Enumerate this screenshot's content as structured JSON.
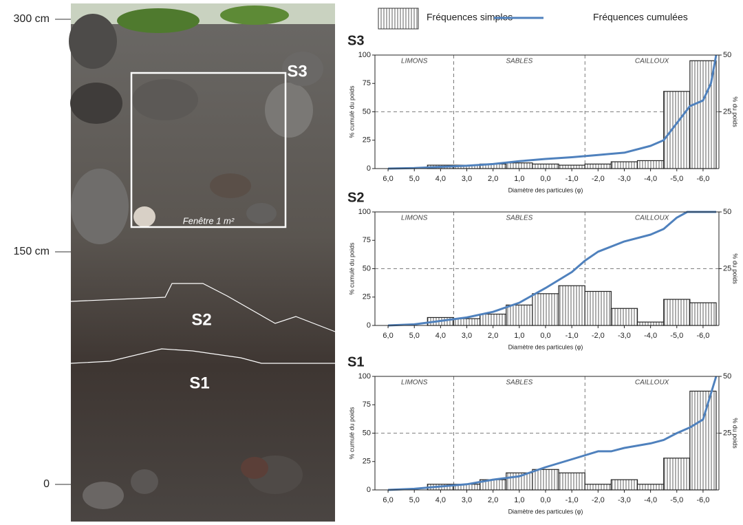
{
  "photo": {
    "depth_labels": [
      "300 cm",
      "150 cm",
      "0"
    ],
    "labels": [
      "S3",
      "S2",
      "S1"
    ],
    "window": "Fenêtre 1 m²"
  },
  "legend": [
    "Fréquences simples",
    "Fréquences cumulées"
  ],
  "chart_data": [
    {
      "type": "bar",
      "title": "S3",
      "y_label": "% cumulé du poids",
      "y2_label": "% du poids",
      "x_label": "Diamètre des particules (φ)",
      "xlim": [
        6.5,
        -6.5
      ],
      "xticks": [
        {
          "value": 6,
          "label": "6,0"
        },
        {
          "value": 5,
          "label": "5,0"
        },
        {
          "value": 4,
          "label": "4,0"
        },
        {
          "value": 3,
          "label": "3,0"
        },
        {
          "value": 2,
          "label": "2,0"
        },
        {
          "value": 1,
          "label": "1,0"
        },
        {
          "value": 0,
          "label": "0,0"
        },
        {
          "value": -1,
          "label": "-1,0"
        },
        {
          "value": -2,
          "label": "-2,0"
        },
        {
          "value": -3,
          "label": "-3,0"
        },
        {
          "value": -4,
          "label": "-4,0"
        },
        {
          "value": -5,
          "label": "-5,0"
        },
        {
          "value": -6,
          "label": "-6,0"
        }
      ],
      "ylim": [
        0,
        100
      ],
      "yticks": [
        0,
        25,
        50,
        75,
        100
      ],
      "y2lim": [
        0,
        50
      ],
      "y2ticks": [
        25,
        50
      ],
      "grid_y": [
        50
      ],
      "dividers": [
        3.5,
        -1.5
      ],
      "zones": [
        "LIMONS",
        "SABLES",
        "CAILLOUX"
      ],
      "series": [
        {
          "kind": "bar",
          "axis": "y2",
          "color": "#ffffff",
          "x": [
            4,
            3,
            2,
            1,
            0,
            -1,
            -2,
            -3,
            -4,
            -5,
            -6
          ],
          "values": [
            1.5,
            1.5,
            2,
            2.5,
            2,
            1.5,
            2,
            3,
            3.5,
            34,
            47.5
          ]
        },
        {
          "kind": "line",
          "color": "#4f81bd",
          "x": [
            6,
            5,
            4,
            3,
            2,
            1,
            0,
            -1,
            -2,
            -3,
            -4,
            -4.5,
            -5,
            -5.5,
            -6,
            -6.3,
            -6.5
          ],
          "values": [
            0,
            0.5,
            1.5,
            2.5,
            4,
            6.5,
            8.5,
            10,
            12,
            14,
            20,
            25,
            40,
            55,
            60,
            75,
            100
          ]
        }
      ]
    },
    {
      "type": "bar",
      "title": "S2",
      "y_label": "% cumulé du poids",
      "y2_label": "% du poids",
      "x_label": "Diamètre des particules (φ)",
      "xlim": [
        6.5,
        -6.5
      ],
      "xticks": [
        {
          "value": 6,
          "label": "6,0"
        },
        {
          "value": 5,
          "label": "5,0"
        },
        {
          "value": 4,
          "label": "4,0"
        },
        {
          "value": 3,
          "label": "3,0"
        },
        {
          "value": 2,
          "label": "2,0"
        },
        {
          "value": 1,
          "label": "1,0"
        },
        {
          "value": 0,
          "label": "0,0"
        },
        {
          "value": -1,
          "label": "-1,0"
        },
        {
          "value": -2,
          "label": "-2,0"
        },
        {
          "value": -3,
          "label": "-3,0"
        },
        {
          "value": -4,
          "label": "-4,0"
        },
        {
          "value": -5,
          "label": "-5,0"
        },
        {
          "value": -6,
          "label": "-6,0"
        }
      ],
      "ylim": [
        0,
        100
      ],
      "yticks": [
        0,
        25,
        50,
        75,
        100
      ],
      "y2lim": [
        0,
        50
      ],
      "y2ticks": [
        25,
        50
      ],
      "grid_y": [
        50
      ],
      "dividers": [
        3.5,
        -1.5
      ],
      "zones": [
        "LIMONS",
        "SABLES",
        "CAILLOUX"
      ],
      "series": [
        {
          "kind": "bar",
          "axis": "y2",
          "color": "#ffffff",
          "x": [
            4,
            3,
            2,
            1,
            0,
            -1,
            -2,
            -3,
            -4,
            -5,
            -6
          ],
          "values": [
            3.5,
            3,
            5,
            9,
            14,
            17.5,
            15,
            7.5,
            1.5,
            11.5,
            10
          ]
        },
        {
          "kind": "line",
          "color": "#4f81bd",
          "x": [
            6,
            5,
            4,
            3,
            2,
            1,
            0,
            -1,
            -1.5,
            -2,
            -3,
            -4,
            -4.5,
            -5,
            -5.4,
            -6.5
          ],
          "values": [
            0,
            1,
            4,
            7,
            12,
            20,
            33,
            47,
            57,
            65,
            74,
            80,
            85,
            95,
            100,
            100
          ]
        }
      ]
    },
    {
      "type": "bar",
      "title": "S1",
      "y_label": "% cumulé du poids",
      "y2_label": "% du poids",
      "x_label": "Diamètre des particules (φ)",
      "xlim": [
        6.5,
        -6.5
      ],
      "xticks": [
        {
          "value": 6,
          "label": "6,0"
        },
        {
          "value": 5,
          "label": "5,0"
        },
        {
          "value": 4,
          "label": "4,0"
        },
        {
          "value": 3,
          "label": "3,0"
        },
        {
          "value": 2,
          "label": "2,0"
        },
        {
          "value": 1,
          "label": "1,0"
        },
        {
          "value": 0,
          "label": "0,0"
        },
        {
          "value": -1,
          "label": "-1,0"
        },
        {
          "value": -2,
          "label": "-2,0"
        },
        {
          "value": -3,
          "label": "-3,0"
        },
        {
          "value": -4,
          "label": "-4,0"
        },
        {
          "value": -5,
          "label": "-5,0"
        },
        {
          "value": -6,
          "label": "-6,0"
        }
      ],
      "ylim": [
        0,
        100
      ],
      "yticks": [
        0,
        25,
        50,
        75,
        100
      ],
      "y2lim": [
        0,
        50
      ],
      "y2ticks": [
        25,
        50
      ],
      "grid_y": [
        50
      ],
      "dividers": [
        3.5,
        -1.5
      ],
      "zones": [
        "LIMONS",
        "SABLES",
        "CAILLOUX"
      ],
      "series": [
        {
          "kind": "bar",
          "axis": "y2",
          "color": "#ffffff",
          "x": [
            4,
            3,
            2,
            1,
            0,
            -1,
            -2,
            -3,
            -4,
            -5,
            -6
          ],
          "values": [
            2.5,
            2.5,
            4.5,
            7.5,
            9,
            7.5,
            2.5,
            4.5,
            2.5,
            14,
            43.5
          ]
        },
        {
          "kind": "line",
          "color": "#4f81bd",
          "x": [
            6,
            5,
            4,
            3,
            2,
            1,
            0,
            -1,
            -2,
            -2.5,
            -3,
            -4,
            -4.5,
            -5,
            -5.5,
            -6,
            -6.5
          ],
          "values": [
            0,
            1,
            3,
            5,
            9,
            12,
            20,
            27,
            34,
            34,
            37,
            41,
            44,
            50,
            55,
            62,
            100
          ]
        }
      ]
    }
  ]
}
